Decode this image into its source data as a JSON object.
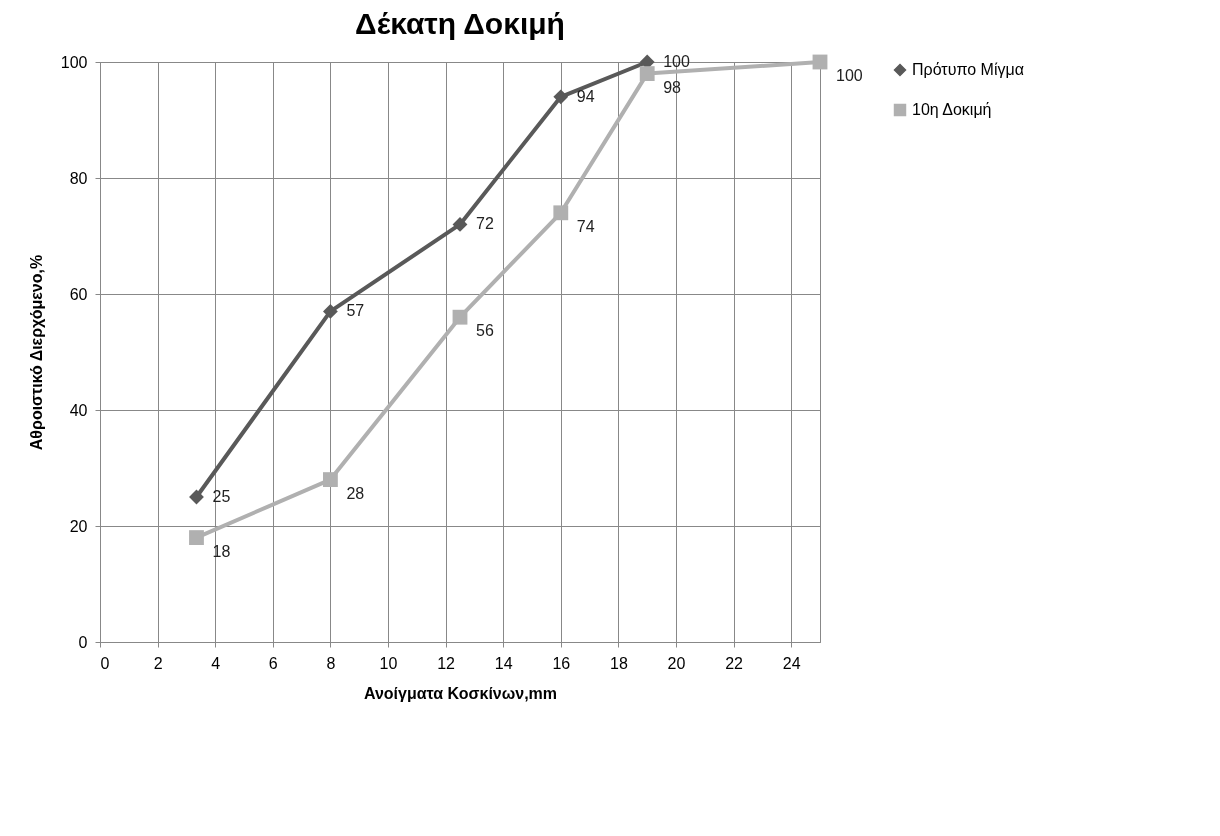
{
  "chart_data": {
    "type": "line",
    "title": "Δέκατη Δοκιμή",
    "xlabel": "Ανοίγματα Κοσκίνων,mm",
    "ylabel": "Αθροιστικό Διερχόμενο,%",
    "series": [
      {
        "name": "Πρότυπο Μίγμα",
        "color": "#595959",
        "marker": "diamond",
        "x": [
          3.35,
          8,
          12.5,
          16,
          19
        ],
        "values": [
          25,
          57,
          72,
          94,
          100
        ]
      },
      {
        "name": "10η Δοκιμή",
        "color": "#b0b0b0",
        "marker": "square",
        "x": [
          3.35,
          8,
          12.5,
          16,
          19,
          25
        ],
        "values": [
          18,
          28,
          56,
          74,
          98,
          100
        ]
      }
    ],
    "xlim": [
      0,
      25
    ],
    "xticks": [
      0,
      2,
      4,
      6,
      8,
      10,
      12,
      14,
      16,
      18,
      20,
      22,
      24
    ],
    "ylim": [
      0,
      100
    ],
    "yticks": [
      0,
      20,
      40,
      60,
      80,
      100
    ],
    "grid": true,
    "legend": "right",
    "data_labels": true
  }
}
